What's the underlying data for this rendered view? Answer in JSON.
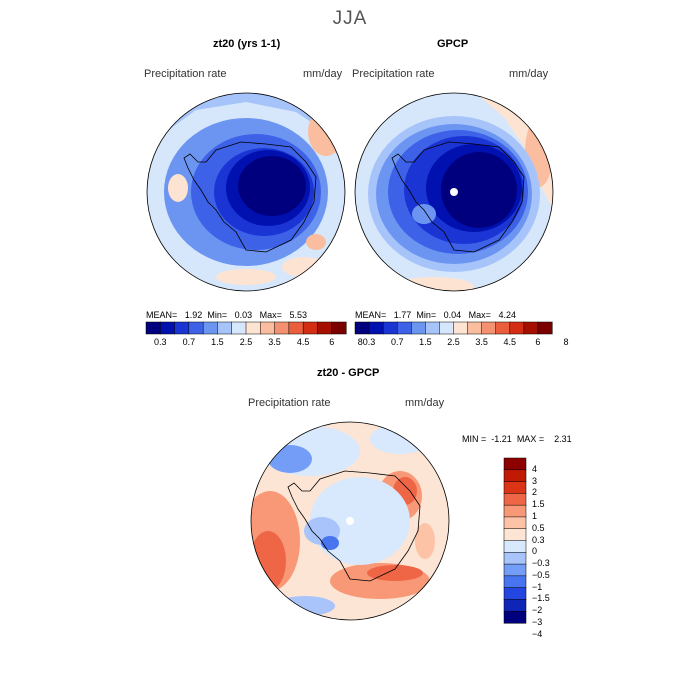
{
  "figure": {
    "season": "JJA",
    "palette_abs": [
      "#00007f",
      "#0011b0",
      "#1a35d4",
      "#3d62e8",
      "#6c95f2",
      "#a6c4fa",
      "#d6e7fc",
      "#fde3d2",
      "#fbbd9f",
      "#f59070",
      "#ea5e3e",
      "#d32d14",
      "#a50f00",
      "#7a0000"
    ],
    "palette_diff": [
      "#00007f",
      "#0e25b8",
      "#2346e0",
      "#4874f0",
      "#739df6",
      "#a8c4fa",
      "#d8e8fd",
      "#fde5d6",
      "#fcc3a6",
      "#f89876",
      "#ef6646",
      "#dc3417",
      "#c01a05",
      "#8c0000"
    ]
  },
  "panels": {
    "model": {
      "title": "zt20 (yrs 1-1)",
      "variable": "Precipitation rate",
      "units": "mm/day",
      "stats": {
        "mean_label": "MEAN=",
        "mean": "1.92",
        "min_label": "Min=",
        "min": "0.03",
        "max_label": "Max=",
        "max": "5.53"
      },
      "colorbar_ticks": [
        "0.3",
        "0.7",
        "1.5",
        "2.5",
        "3.5",
        "4.5",
        "6",
        "8"
      ]
    },
    "obs": {
      "title": "GPCP",
      "variable": "Precipitation rate",
      "units": "mm/day",
      "stats": {
        "mean_label": "MEAN=",
        "mean": "1.77",
        "min_label": "Min=",
        "min": "0.04",
        "max_label": "Max=",
        "max": "4.24"
      },
      "colorbar_ticks": [
        "0.3",
        "0.7",
        "1.5",
        "2.5",
        "3.5",
        "4.5",
        "6",
        "8"
      ]
    },
    "diff": {
      "title": "zt20 - GPCP",
      "variable": "Precipitation rate",
      "units": "mm/day",
      "stats": {
        "min_label": "MIN =",
        "min": "-1.21",
        "max_label": "MAX =",
        "max": "2.31"
      },
      "colorbar_ticks": [
        "4",
        "3",
        "2",
        "1.5",
        "1",
        "0.5",
        "0.3",
        "0",
        "−0.3",
        "−0.5",
        "−1",
        "−1.5",
        "−2",
        "−3",
        "−4"
      ]
    }
  }
}
